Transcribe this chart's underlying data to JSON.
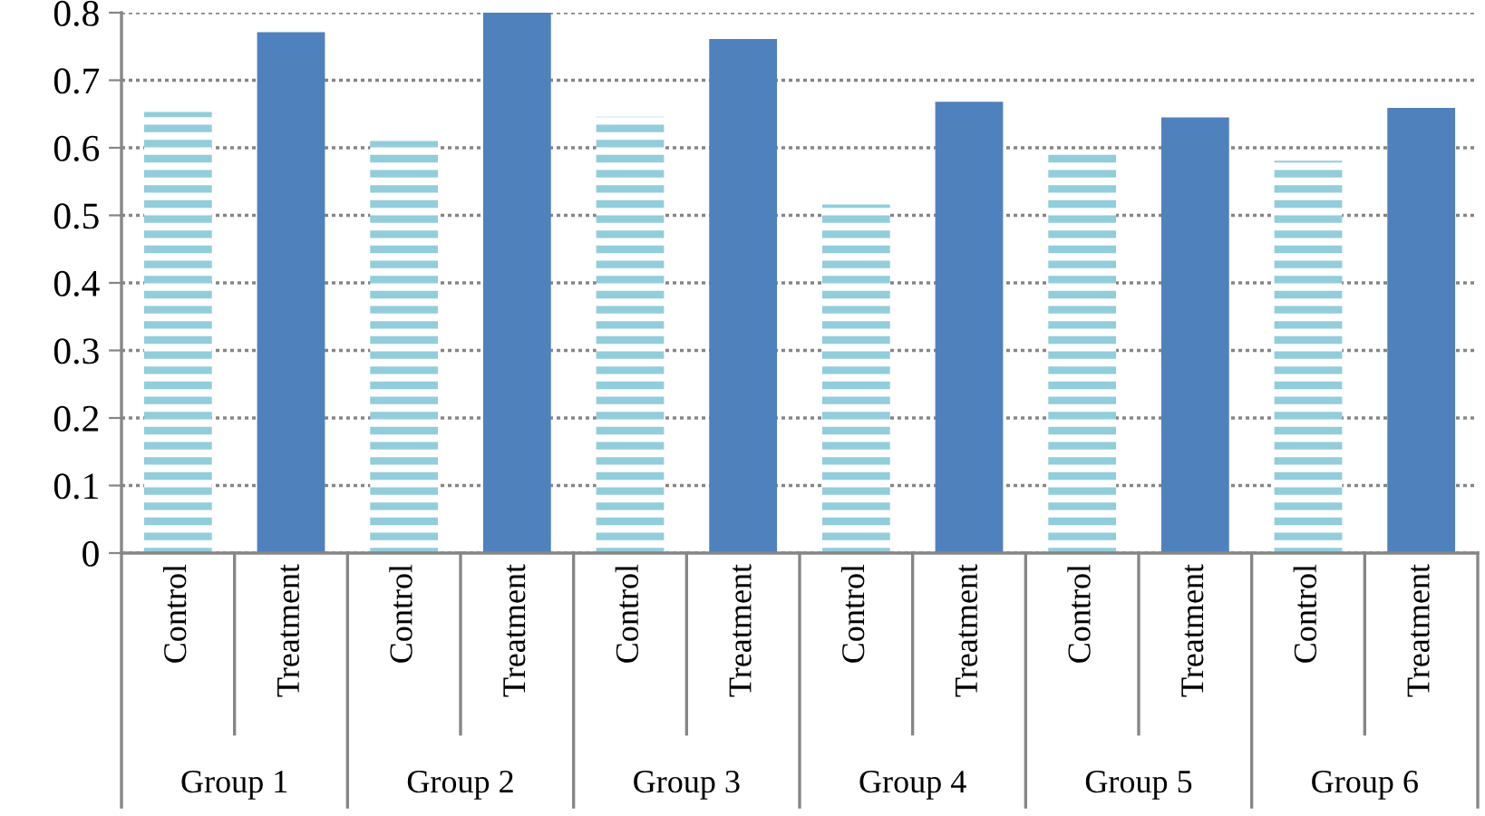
{
  "chart_data": {
    "type": "bar",
    "categories": [
      "Group 1",
      "Group 2",
      "Group 3",
      "Group 4",
      "Group 5",
      "Group 6"
    ],
    "series": [
      {
        "name": "Control",
        "color": "#92cddc",
        "values": [
          0.653,
          0.61,
          0.646,
          0.516,
          0.592,
          0.581
        ]
      },
      {
        "name": "Treatment",
        "color": "#4f81bd",
        "values": [
          0.771,
          0.8,
          0.761,
          0.668,
          0.645,
          0.659
        ]
      }
    ],
    "ylim": [
      0,
      0.8
    ],
    "yticks": [
      0,
      0.1,
      0.2,
      0.3,
      0.4,
      0.5,
      0.6,
      0.7,
      0.8
    ],
    "grid": "y",
    "legend": false
  }
}
